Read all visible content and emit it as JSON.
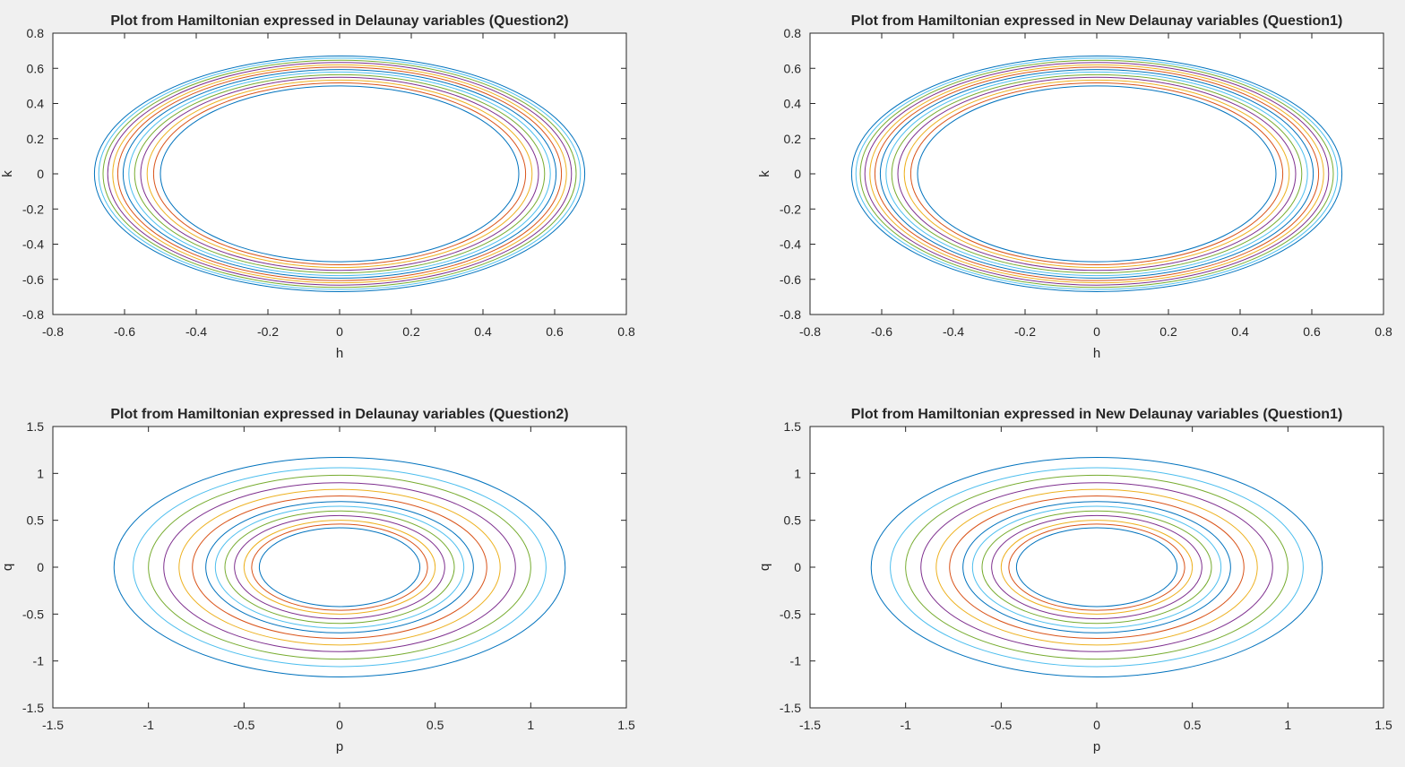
{
  "figure": {
    "background": "#f0f0f0",
    "axes_background": "#ffffff",
    "color_order": [
      "#0072BD",
      "#D95319",
      "#EDB120",
      "#7E2F8E",
      "#77AC30",
      "#4DBEEE"
    ]
  },
  "chart_data": [
    {
      "type": "line",
      "title": "Plot from Hamiltonian expressed in Delaunay variables (Question2)",
      "xlabel": "h",
      "ylabel": "k",
      "xlim": [
        -0.8,
        0.8
      ],
      "ylim": [
        -0.8,
        0.8
      ],
      "xticks": [
        -0.8,
        -0.6,
        -0.4,
        -0.2,
        0,
        0.2,
        0.4,
        0.6,
        0.8
      ],
      "yticks": [
        -0.8,
        -0.6,
        -0.4,
        -0.2,
        0,
        0.2,
        0.4,
        0.6,
        0.8
      ],
      "xtick_labels": [
        "-0.8",
        "-0.6",
        "-0.4",
        "-0.2",
        "0",
        "0.2",
        "0.4",
        "0.6",
        "0.8"
      ],
      "ytick_labels": [
        "-0.8",
        "-0.6",
        "-0.4",
        "-0.2",
        "0",
        "0.2",
        "0.4",
        "0.6",
        "0.8"
      ],
      "grid": false,
      "series": [
        {
          "rx": 0.5,
          "ry": 0.5
        },
        {
          "rx": 0.519,
          "ry": 0.517
        },
        {
          "rx": 0.537,
          "ry": 0.533
        },
        {
          "rx": 0.555,
          "ry": 0.549
        },
        {
          "rx": 0.572,
          "ry": 0.564
        },
        {
          "rx": 0.588,
          "ry": 0.579
        },
        {
          "rx": 0.604,
          "ry": 0.593
        },
        {
          "rx": 0.619,
          "ry": 0.607
        },
        {
          "rx": 0.633,
          "ry": 0.62
        },
        {
          "rx": 0.647,
          "ry": 0.633
        },
        {
          "rx": 0.66,
          "ry": 0.646
        },
        {
          "rx": 0.672,
          "ry": 0.658
        },
        {
          "rx": 0.684,
          "ry": 0.67
        }
      ]
    },
    {
      "type": "line",
      "title": "Plot from Hamiltonian expressed in New Delaunay variables (Question1)",
      "xlabel": "h",
      "ylabel": "k",
      "xlim": [
        -0.8,
        0.8
      ],
      "ylim": [
        -0.8,
        0.8
      ],
      "xticks": [
        -0.8,
        -0.6,
        -0.4,
        -0.2,
        0,
        0.2,
        0.4,
        0.6,
        0.8
      ],
      "yticks": [
        -0.8,
        -0.6,
        -0.4,
        -0.2,
        0,
        0.2,
        0.4,
        0.6,
        0.8
      ],
      "xtick_labels": [
        "-0.8",
        "-0.6",
        "-0.4",
        "-0.2",
        "0",
        "0.2",
        "0.4",
        "0.6",
        "0.8"
      ],
      "ytick_labels": [
        "-0.8",
        "-0.6",
        "-0.4",
        "-0.2",
        "0",
        "0.2",
        "0.4",
        "0.6",
        "0.8"
      ],
      "grid": false,
      "series": [
        {
          "rx": 0.5,
          "ry": 0.5
        },
        {
          "rx": 0.519,
          "ry": 0.517
        },
        {
          "rx": 0.537,
          "ry": 0.533
        },
        {
          "rx": 0.555,
          "ry": 0.549
        },
        {
          "rx": 0.572,
          "ry": 0.564
        },
        {
          "rx": 0.588,
          "ry": 0.579
        },
        {
          "rx": 0.604,
          "ry": 0.593
        },
        {
          "rx": 0.619,
          "ry": 0.607
        },
        {
          "rx": 0.633,
          "ry": 0.62
        },
        {
          "rx": 0.647,
          "ry": 0.633
        },
        {
          "rx": 0.66,
          "ry": 0.646
        },
        {
          "rx": 0.672,
          "ry": 0.658
        },
        {
          "rx": 0.684,
          "ry": 0.67
        }
      ]
    },
    {
      "type": "line",
      "title": "Plot from Hamiltonian expressed in Delaunay variables (Question2)",
      "xlabel": "p",
      "ylabel": "q",
      "xlim": [
        -1.5,
        1.5
      ],
      "ylim": [
        -1.5,
        1.5
      ],
      "xticks": [
        -1.5,
        -1,
        -0.5,
        0,
        0.5,
        1,
        1.5
      ],
      "yticks": [
        -1.5,
        -1,
        -0.5,
        0,
        0.5,
        1,
        1.5
      ],
      "xtick_labels": [
        "-1.5",
        "-1",
        "-0.5",
        "0",
        "0.5",
        "1",
        "1.5"
      ],
      "ytick_labels": [
        "-1.5",
        "-1",
        "-0.5",
        "0",
        "0.5",
        "1",
        "1.5"
      ],
      "grid": false,
      "series": [
        {
          "rx": 0.42,
          "ry": 0.42
        },
        {
          "rx": 0.46,
          "ry": 0.46
        },
        {
          "rx": 0.5,
          "ry": 0.5
        },
        {
          "rx": 0.55,
          "ry": 0.55
        },
        {
          "rx": 0.6,
          "ry": 0.6
        },
        {
          "rx": 0.65,
          "ry": 0.65
        },
        {
          "rx": 0.7,
          "ry": 0.7
        },
        {
          "rx": 0.77,
          "ry": 0.76
        },
        {
          "rx": 0.84,
          "ry": 0.83
        },
        {
          "rx": 0.92,
          "ry": 0.9
        },
        {
          "rx": 1.0,
          "ry": 0.98
        },
        {
          "rx": 1.08,
          "ry": 1.06
        },
        {
          "rx": 1.18,
          "ry": 1.17
        }
      ]
    },
    {
      "type": "line",
      "title": "Plot from Hamiltonian expressed in New Delaunay variables (Question1)",
      "xlabel": "p",
      "ylabel": "q",
      "xlim": [
        -1.5,
        1.5
      ],
      "ylim": [
        -1.5,
        1.5
      ],
      "xticks": [
        -1.5,
        -1,
        -0.5,
        0,
        0.5,
        1,
        1.5
      ],
      "yticks": [
        -1.5,
        -1,
        -0.5,
        0,
        0.5,
        1,
        1.5
      ],
      "xtick_labels": [
        "-1.5",
        "-1",
        "-0.5",
        "0",
        "0.5",
        "1",
        "1.5"
      ],
      "ytick_labels": [
        "-1.5",
        "-1",
        "-0.5",
        "0",
        "0.5",
        "1",
        "1.5"
      ],
      "grid": false,
      "series": [
        {
          "rx": 0.42,
          "ry": 0.42
        },
        {
          "rx": 0.46,
          "ry": 0.46
        },
        {
          "rx": 0.5,
          "ry": 0.5
        },
        {
          "rx": 0.55,
          "ry": 0.55
        },
        {
          "rx": 0.6,
          "ry": 0.6
        },
        {
          "rx": 0.65,
          "ry": 0.65
        },
        {
          "rx": 0.7,
          "ry": 0.7
        },
        {
          "rx": 0.77,
          "ry": 0.76
        },
        {
          "rx": 0.84,
          "ry": 0.83
        },
        {
          "rx": 0.92,
          "ry": 0.9
        },
        {
          "rx": 1.0,
          "ry": 0.98
        },
        {
          "rx": 1.08,
          "ry": 1.06
        },
        {
          "rx": 1.18,
          "ry": 1.17
        }
      ]
    }
  ]
}
